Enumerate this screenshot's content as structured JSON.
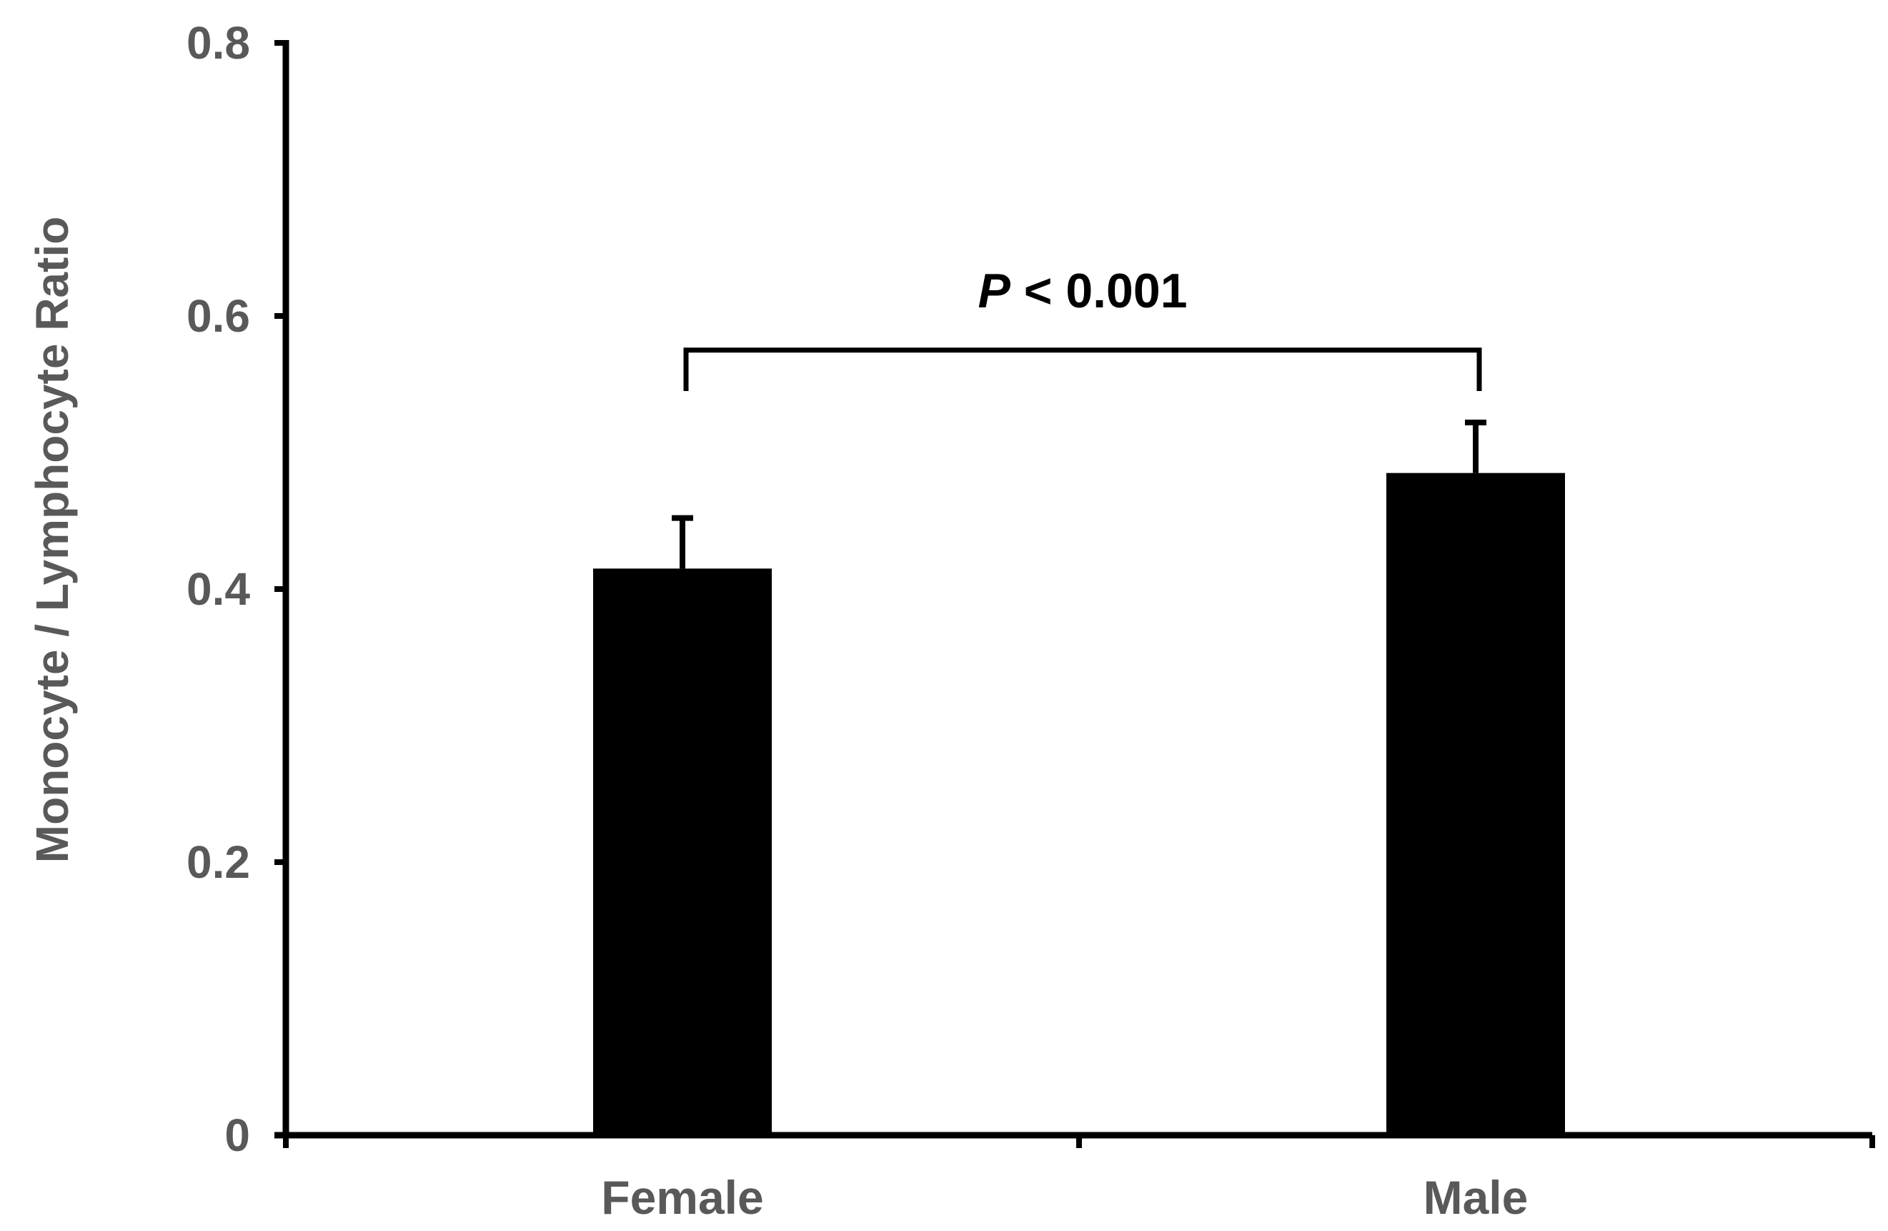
{
  "chart_data": {
    "type": "bar",
    "categories": [
      "Female",
      "Male"
    ],
    "values": [
      0.415,
      0.485
    ],
    "errors": [
      0.037,
      0.037
    ],
    "ylabel": "Monocyte / Lymphocyte Ratio",
    "xlabel": "",
    "ylim": [
      0,
      0.8
    ],
    "yticks": [
      "0",
      "0.2",
      "0.4",
      "0.6",
      "0.8"
    ],
    "grid": false,
    "legend": "none",
    "bar_color": "#000000",
    "annotation": {
      "italic": "P",
      "rest": " < 0.001",
      "bracket_top": 0.575,
      "bracket_ends": [
        0.545,
        0.545
      ]
    }
  }
}
